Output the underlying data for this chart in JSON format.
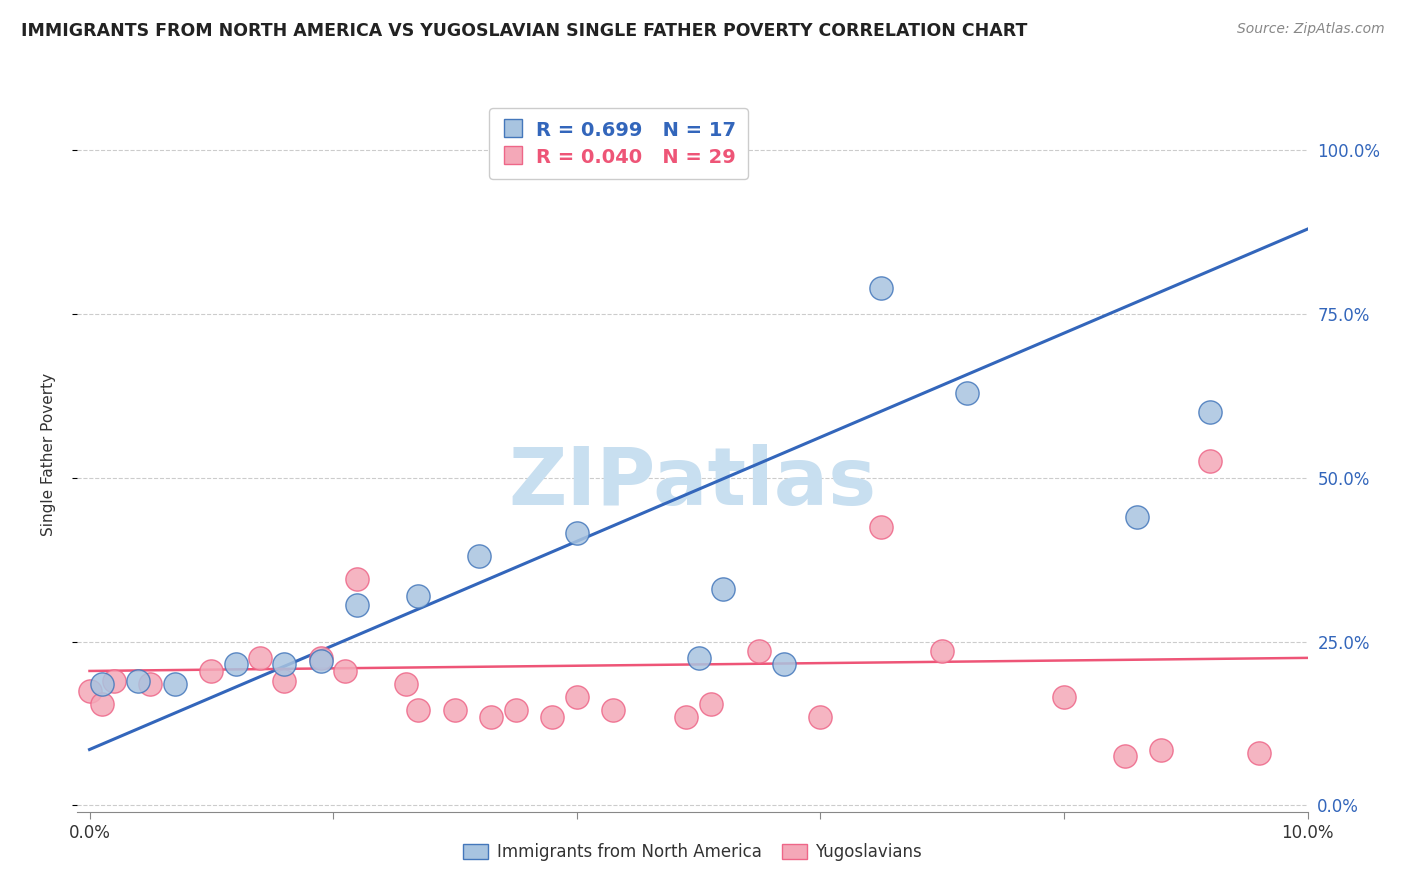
{
  "title": "IMMIGRANTS FROM NORTH AMERICA VS YUGOSLAVIAN SINGLE FATHER POVERTY CORRELATION CHART",
  "source": "Source: ZipAtlas.com",
  "ylabel": "Single Father Poverty",
  "legend1_label": "Immigrants from North America",
  "legend2_label": "Yugoslavians",
  "R1": "0.699",
  "N1": "17",
  "R2": "0.040",
  "N2": "29",
  "blue_color": "#a8c4e0",
  "pink_color": "#f4a8b8",
  "blue_edge_color": "#4477bb",
  "pink_edge_color": "#ee6688",
  "blue_line_color": "#3366bb",
  "pink_line_color": "#ee5577",
  "watermark_color": "#c8dff0",
  "blue_points": [
    [
      0.001,
      0.185
    ],
    [
      0.004,
      0.19
    ],
    [
      0.007,
      0.185
    ],
    [
      0.012,
      0.215
    ],
    [
      0.016,
      0.215
    ],
    [
      0.019,
      0.22
    ],
    [
      0.022,
      0.305
    ],
    [
      0.027,
      0.32
    ],
    [
      0.032,
      0.38
    ],
    [
      0.04,
      0.415
    ],
    [
      0.05,
      0.225
    ],
    [
      0.052,
      0.33
    ],
    [
      0.057,
      0.215
    ],
    [
      0.065,
      0.79
    ],
    [
      0.072,
      0.63
    ],
    [
      0.086,
      0.44
    ],
    [
      0.092,
      0.6
    ]
  ],
  "pink_points": [
    [
      0.0,
      0.175
    ],
    [
      0.001,
      0.155
    ],
    [
      0.002,
      0.19
    ],
    [
      0.005,
      0.185
    ],
    [
      0.01,
      0.205
    ],
    [
      0.014,
      0.225
    ],
    [
      0.016,
      0.19
    ],
    [
      0.019,
      0.225
    ],
    [
      0.021,
      0.205
    ],
    [
      0.022,
      0.345
    ],
    [
      0.026,
      0.185
    ],
    [
      0.027,
      0.145
    ],
    [
      0.03,
      0.145
    ],
    [
      0.033,
      0.135
    ],
    [
      0.035,
      0.145
    ],
    [
      0.038,
      0.135
    ],
    [
      0.04,
      0.165
    ],
    [
      0.043,
      0.145
    ],
    [
      0.049,
      0.135
    ],
    [
      0.051,
      0.155
    ],
    [
      0.055,
      0.235
    ],
    [
      0.06,
      0.135
    ],
    [
      0.065,
      0.425
    ],
    [
      0.07,
      0.235
    ],
    [
      0.08,
      0.165
    ],
    [
      0.085,
      0.075
    ],
    [
      0.088,
      0.085
    ],
    [
      0.092,
      0.525
    ],
    [
      0.096,
      0.08
    ]
  ],
  "blue_trendline_x": [
    0.0,
    0.1
  ],
  "blue_trendline_y": [
    0.085,
    0.88
  ],
  "pink_trendline_x": [
    0.0,
    0.1
  ],
  "pink_trendline_y": [
    0.205,
    0.225
  ],
  "xlim": [
    -0.001,
    0.1
  ],
  "ylim": [
    -0.01,
    1.08
  ],
  "ytick_positions": [
    0.0,
    0.25,
    0.5,
    0.75,
    1.0
  ],
  "ytick_labels": [
    "0.0%",
    "25.0%",
    "50.0%",
    "75.0%",
    "100.0%"
  ],
  "xtick_positions": [
    0.0,
    0.02,
    0.04,
    0.06,
    0.08,
    0.1
  ],
  "xtick_labels_bottom": [
    "0.0%",
    "",
    "",
    "",
    "",
    "10.0%"
  ]
}
